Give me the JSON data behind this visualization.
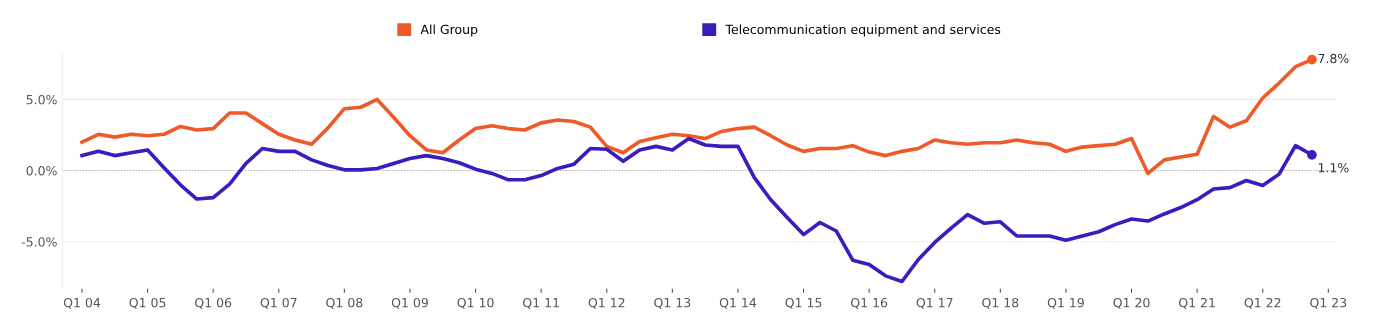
{
  "chart_data": {
    "type": "line",
    "categories": [
      "Q1 04",
      null,
      null,
      null,
      "Q1 05",
      null,
      null,
      null,
      "Q1 06",
      null,
      null,
      null,
      "Q1 07",
      null,
      null,
      null,
      "Q1 08",
      null,
      null,
      null,
      "Q1 09",
      null,
      null,
      null,
      "Q1 10",
      null,
      null,
      null,
      "Q1 11",
      null,
      null,
      null,
      "Q1 12",
      null,
      null,
      null,
      "Q1 13",
      null,
      null,
      null,
      "Q1 14",
      null,
      null,
      null,
      "Q1 15",
      null,
      null,
      null,
      "Q1 16",
      null,
      null,
      null,
      "Q1 17",
      null,
      null,
      null,
      "Q1 18",
      null,
      null,
      null,
      "Q1 19",
      null,
      null,
      null,
      "Q1 20",
      null,
      null,
      null,
      "Q1 21",
      null,
      null,
      null,
      "Q1 22",
      null,
      null,
      null,
      "Q1 23"
    ],
    "series": [
      {
        "name": "All Group",
        "color": "#f05a28",
        "values": [
          2.0,
          2.55,
          2.35,
          2.55,
          2.45,
          2.55,
          3.1,
          2.85,
          2.95,
          4.05,
          4.05,
          3.3,
          2.55,
          2.15,
          1.85,
          3.0,
          4.35,
          4.45,
          5.0,
          3.75,
          2.45,
          1.45,
          1.25,
          2.15,
          2.95,
          3.15,
          2.95,
          2.85,
          3.35,
          3.55,
          3.45,
          3.05,
          1.7,
          1.25,
          2.05,
          2.3,
          2.55,
          2.45,
          2.25,
          2.75,
          2.95,
          3.05,
          2.45,
          1.8,
          1.35,
          1.55,
          1.55,
          1.75,
          1.3,
          1.05,
          1.35,
          1.55,
          2.15,
          1.95,
          1.85,
          1.95,
          1.95,
          2.15,
          1.95,
          1.85,
          1.35,
          1.65,
          1.75,
          1.85,
          2.25,
          -0.2,
          0.75,
          0.95,
          1.15,
          3.8,
          3.05,
          3.5,
          5.1,
          6.15,
          7.3,
          7.8,
          null
        ],
        "value_labels": [
          null,
          null,
          null,
          null,
          null,
          null,
          null,
          null,
          null,
          null,
          null,
          null,
          null,
          null,
          null,
          null,
          null,
          null,
          null,
          null,
          null,
          null,
          null,
          null,
          null,
          null,
          null,
          null,
          null,
          null,
          null,
          null,
          null,
          null,
          null,
          null,
          null,
          null,
          null,
          null,
          null,
          null,
          null,
          null,
          null,
          null,
          null,
          null,
          null,
          null,
          null,
          null,
          null,
          null,
          null,
          null,
          null,
          null,
          null,
          null,
          null,
          null,
          null,
          null,
          null,
          null,
          null,
          null,
          null,
          null,
          null,
          null,
          null,
          null,
          null,
          "7.8%",
          null
        ]
      },
      {
        "name": "Telecommunication equipment and services",
        "color": "#3a1cbf",
        "values": [
          1.05,
          1.35,
          1.05,
          1.25,
          1.45,
          0.2,
          -1.0,
          -2.0,
          -1.9,
          -0.95,
          0.5,
          1.55,
          1.35,
          1.35,
          0.75,
          0.35,
          0.05,
          0.05,
          0.15,
          0.5,
          0.85,
          1.05,
          0.85,
          0.55,
          0.1,
          -0.2,
          -0.65,
          -0.65,
          -0.35,
          0.15,
          0.45,
          1.55,
          1.5,
          0.65,
          1.45,
          1.7,
          1.45,
          2.25,
          1.8,
          1.7,
          1.7,
          -0.5,
          -2.05,
          -3.3,
          -4.5,
          -3.65,
          -4.25,
          -6.3,
          -6.6,
          -7.4,
          -7.8,
          -6.25,
          -5.05,
          -4.05,
          -3.1,
          -3.7,
          -3.6,
          -4.6,
          -4.6,
          -4.6,
          -4.9,
          -4.6,
          -4.3,
          -3.8,
          -3.4,
          -3.55,
          -3.05,
          -2.6,
          -2.05,
          -1.3,
          -1.2,
          -0.7,
          -1.05,
          -0.25,
          1.75,
          1.1,
          null
        ],
        "value_labels": [
          null,
          null,
          null,
          null,
          null,
          null,
          null,
          null,
          null,
          null,
          null,
          null,
          null,
          null,
          null,
          null,
          null,
          null,
          null,
          null,
          null,
          null,
          null,
          null,
          null,
          null,
          null,
          null,
          null,
          null,
          null,
          null,
          null,
          null,
          null,
          null,
          null,
          null,
          null,
          null,
          null,
          null,
          null,
          null,
          null,
          null,
          null,
          null,
          null,
          null,
          null,
          null,
          null,
          null,
          null,
          null,
          null,
          null,
          null,
          null,
          null,
          null,
          null,
          null,
          null,
          null,
          null,
          null,
          null,
          null,
          null,
          null,
          null,
          null,
          null,
          "1.1%",
          null
        ]
      }
    ],
    "ylim": [
      -8.3,
      8.3
    ],
    "yticks": [
      {
        "value": -5,
        "label": "-5.0%"
      },
      {
        "value": 0,
        "label": "0.0%"
      },
      {
        "value": 5,
        "label": "5.0%"
      }
    ],
    "ref_lines": [
      {
        "axis": "y",
        "value": 0,
        "color": "#aaaaaa",
        "line_style": "dotted"
      }
    ],
    "grid": "y",
    "legend": "top",
    "marker": "none",
    "line_style": "solid"
  }
}
